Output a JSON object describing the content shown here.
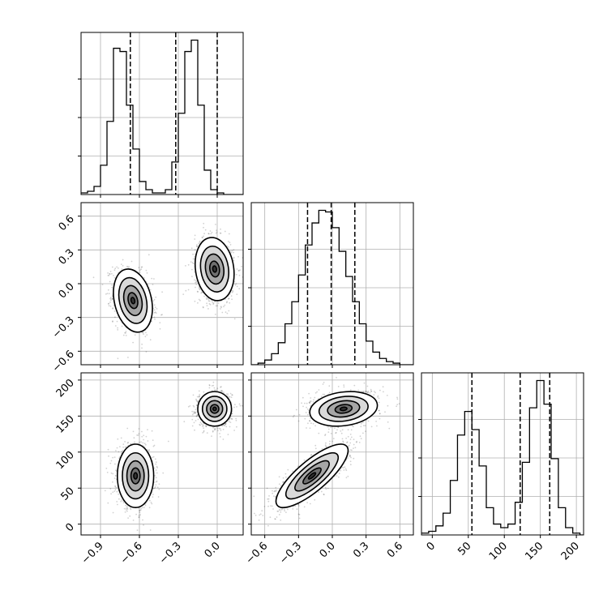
{
  "chart_data": {
    "type": "corner",
    "grid": true,
    "parameters": [
      {
        "index": 0,
        "range": [
          -1.05,
          0.2
        ],
        "ticks": [
          -0.9,
          -0.6,
          -0.3,
          0.0
        ],
        "tick_labels": [
          "−0.9",
          "−0.6",
          "−0.3",
          "0.0"
        ],
        "quantiles": [
          -0.67,
          -0.32,
          0.0
        ],
        "histogram": {
          "bin_edges": [
            -1.05,
            -1.0,
            -0.95,
            -0.9,
            -0.85,
            -0.8,
            -0.75,
            -0.7,
            -0.65,
            -0.6,
            -0.55,
            -0.5,
            -0.45,
            -0.4,
            -0.35,
            -0.3,
            -0.25,
            -0.2,
            -0.15,
            -0.1,
            -0.05,
            0.0,
            0.05,
            0.1,
            0.15,
            0.2
          ],
          "counts": [
            0.01,
            0.02,
            0.05,
            0.18,
            0.45,
            0.9,
            0.88,
            0.55,
            0.28,
            0.08,
            0.03,
            0.01,
            0.01,
            0.03,
            0.2,
            0.5,
            0.88,
            0.95,
            0.55,
            0.15,
            0.03,
            0.01,
            0.0,
            0.0,
            0.0
          ]
        }
      },
      {
        "index": 1,
        "range": [
          -0.72,
          0.72
        ],
        "ticks": [
          -0.6,
          -0.3,
          0.0,
          0.3,
          0.6
        ],
        "tick_labels": [
          "−0.6",
          "−0.3",
          "0.0",
          "0.3",
          "0.6"
        ],
        "quantiles": [
          -0.22,
          -0.01,
          0.2
        ],
        "histogram": {
          "bin_edges": [
            -0.72,
            -0.66,
            -0.6,
            -0.54,
            -0.48,
            -0.42,
            -0.36,
            -0.3,
            -0.24,
            -0.18,
            -0.12,
            -0.06,
            0.0,
            0.06,
            0.12,
            0.18,
            0.24,
            0.3,
            0.36,
            0.42,
            0.48,
            0.54,
            0.6,
            0.66,
            0.72
          ],
          "counts": [
            0.0,
            0.01,
            0.03,
            0.07,
            0.14,
            0.26,
            0.4,
            0.57,
            0.76,
            0.9,
            0.98,
            0.97,
            0.87,
            0.72,
            0.56,
            0.4,
            0.26,
            0.15,
            0.08,
            0.04,
            0.02,
            0.01,
            0.0,
            0.0
          ]
        }
      },
      {
        "index": 2,
        "range": [
          -15,
          210
        ],
        "ticks": [
          0,
          50,
          100,
          150,
          200
        ],
        "tick_labels": [
          "0",
          "50",
          "100",
          "150",
          "200"
        ],
        "quantiles": [
          55,
          122,
          163
        ],
        "histogram": {
          "bin_edges": [
            -15,
            -5,
            5,
            15,
            25,
            35,
            45,
            55,
            65,
            75,
            85,
            95,
            105,
            115,
            125,
            135,
            145,
            155,
            165,
            175,
            185,
            195,
            205,
            210
          ],
          "counts": [
            0.01,
            0.02,
            0.05,
            0.12,
            0.3,
            0.55,
            0.68,
            0.58,
            0.38,
            0.15,
            0.06,
            0.04,
            0.06,
            0.18,
            0.4,
            0.7,
            0.85,
            0.72,
            0.42,
            0.15,
            0.04,
            0.01,
            0.0
          ]
        }
      }
    ],
    "joint_panels": [
      {
        "x_param": 0,
        "y_param": 1,
        "modes": [
          {
            "cx": -0.65,
            "cy": -0.15,
            "sx": 0.075,
            "sy": 0.14,
            "rho": -0.25,
            "n": 1100
          },
          {
            "cx": -0.02,
            "cy": 0.13,
            "sx": 0.075,
            "sy": 0.14,
            "rho": -0.15,
            "n": 1100
          }
        ]
      },
      {
        "x_param": 0,
        "y_param": 2,
        "modes": [
          {
            "cx": -0.63,
            "cy": 67,
            "sx": 0.07,
            "sy": 22,
            "rho": 0.0,
            "n": 1100
          },
          {
            "cx": -0.02,
            "cy": 160,
            "sx": 0.065,
            "sy": 12,
            "rho": 0.0,
            "n": 1100
          }
        ]
      },
      {
        "x_param": 1,
        "y_param": 2,
        "modes": [
          {
            "cx": -0.18,
            "cy": 67,
            "sx": 0.16,
            "sy": 22,
            "rho": 0.8,
            "n": 1100
          },
          {
            "cx": 0.1,
            "cy": 160,
            "sx": 0.15,
            "sy": 12,
            "rho": 0.2,
            "n": 1100
          }
        ]
      }
    ]
  }
}
